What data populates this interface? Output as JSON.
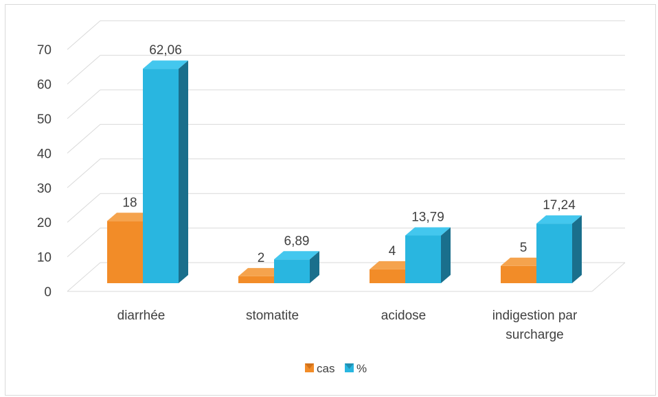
{
  "chart_data": {
    "type": "bar",
    "title": "",
    "xlabel": "",
    "ylabel": "",
    "categories": [
      "diarrhée",
      "stomatite",
      "acidose",
      "indigestion par surcharge"
    ],
    "series": [
      {
        "name": "cas",
        "values": [
          18,
          2,
          4,
          5
        ],
        "labels": [
          "18",
          "2",
          "4",
          "5"
        ],
        "color": "#f28c28",
        "side_color": "#b85c0f",
        "top_color": "#f5a34d"
      },
      {
        "name": "%",
        "values": [
          62.06,
          6.89,
          13.79,
          17.24
        ],
        "labels": [
          "62,06",
          "6,89",
          "13,79",
          "17,24"
        ],
        "color": "#29b6e0",
        "side_color": "#1a6f8c",
        "top_color": "#43c7ee"
      }
    ],
    "yticks": [
      "0",
      "10",
      "20",
      "30",
      "40",
      "50",
      "60",
      "70"
    ],
    "ylim": [
      0,
      70
    ],
    "grid": true,
    "legend_position": "bottom"
  }
}
